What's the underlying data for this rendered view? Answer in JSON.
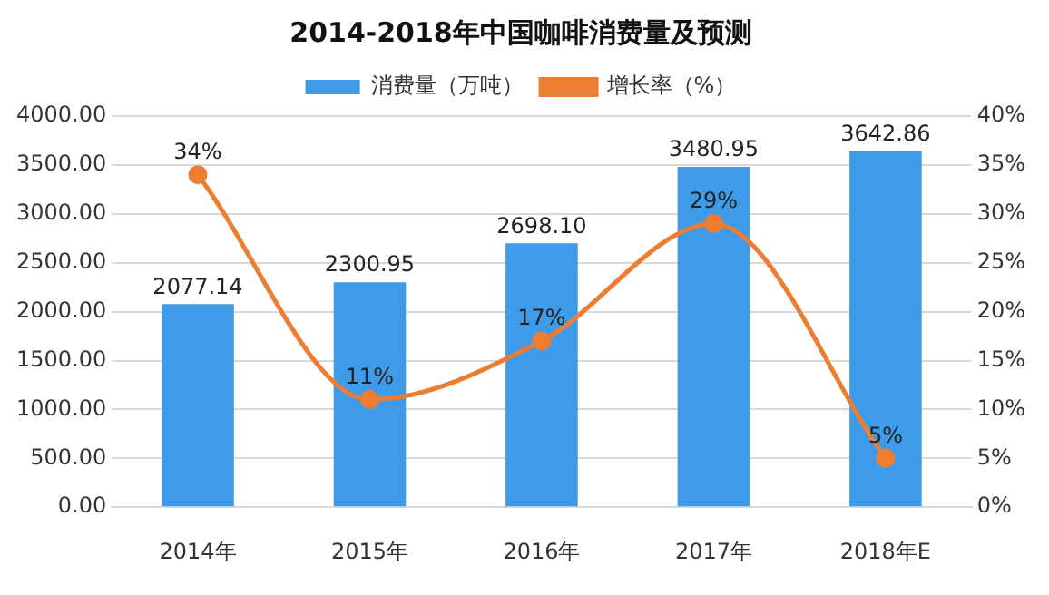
{
  "chart_data": {
    "type": "bar",
    "title": "2014-2018年中国咖啡消费量及预测",
    "categories": [
      "2014年",
      "2015年",
      "2016年",
      "2017年",
      "2018年E"
    ],
    "series": [
      {
        "name": "消费量（万吨）",
        "color": "#3d9be9",
        "values": [
          2077.14,
          2300.95,
          2698.1,
          3480.95,
          3642.86
        ],
        "value_labels": [
          "2077.14",
          "2300.95",
          "2698.10",
          "3480.95",
          "3642.86"
        ]
      },
      {
        "name": "增长率（%）",
        "type": "line",
        "axis": "y2",
        "color": "#ed7d31",
        "values": [
          34,
          11,
          17,
          29,
          5
        ],
        "value_labels": [
          "34%",
          "11%",
          "17%",
          "29%",
          "5%"
        ]
      }
    ],
    "ylim": [
      0,
      4000
    ],
    "yticks": [
      {
        "value": 0,
        "label": "0.00"
      },
      {
        "value": 500,
        "label": "500.00"
      },
      {
        "value": 1000,
        "label": "1000.00"
      },
      {
        "value": 1500,
        "label": "1500.00"
      },
      {
        "value": 2000,
        "label": "2000.00"
      },
      {
        "value": 2500,
        "label": "2500.00"
      },
      {
        "value": 3000,
        "label": "3000.00"
      },
      {
        "value": 3500,
        "label": "3500.00"
      },
      {
        "value": 4000,
        "label": "4000.00"
      }
    ],
    "y2lim": [
      0,
      40
    ],
    "y2ticks": [
      {
        "value": 0,
        "label": "0%"
      },
      {
        "value": 5,
        "label": "5%"
      },
      {
        "value": 10,
        "label": "10%"
      },
      {
        "value": 15,
        "label": "15%"
      },
      {
        "value": 20,
        "label": "20%"
      },
      {
        "value": 25,
        "label": "25%"
      },
      {
        "value": 30,
        "label": "30%"
      },
      {
        "value": 35,
        "label": "35%"
      },
      {
        "value": 40,
        "label": "40%"
      }
    ],
    "grid": "y",
    "legend": "top",
    "marker": "circle",
    "line_style": "solid"
  }
}
